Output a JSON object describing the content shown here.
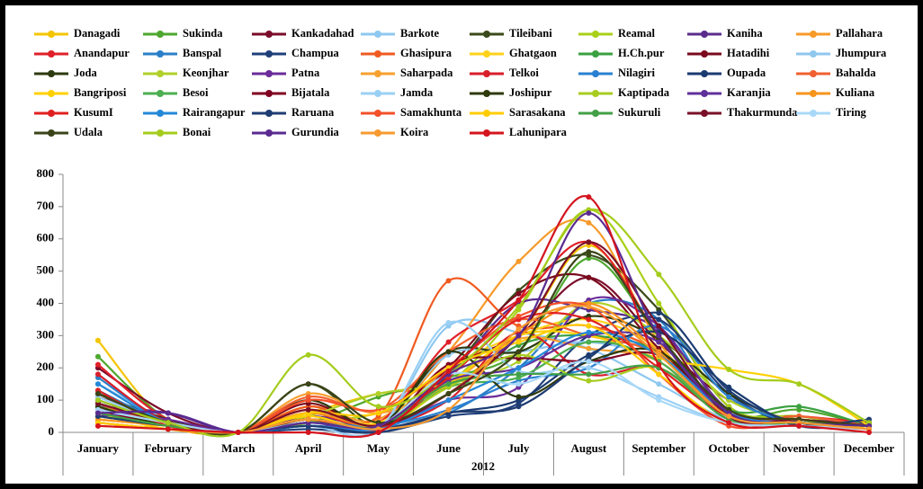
{
  "chart_data": {
    "type": "line",
    "x_label": "2012",
    "categories": [
      "January",
      "February",
      "March",
      "April",
      "May",
      "June",
      "July",
      "August",
      "September",
      "October",
      "November",
      "December"
    ],
    "ylim": [
      0,
      800
    ],
    "yticks": [
      0,
      100,
      200,
      300,
      400,
      500,
      600,
      700,
      800
    ],
    "grid": false,
    "series": [
      {
        "name": "Danagadi",
        "color": "#f5c400",
        "values": [
          285,
          30,
          0,
          60,
          120,
          150,
          300,
          580,
          300,
          50,
          30,
          20
        ]
      },
      {
        "name": "Sukinda",
        "color": "#4ea72e",
        "values": [
          235,
          40,
          0,
          30,
          110,
          170,
          250,
          540,
          300,
          60,
          70,
          20
        ]
      },
      {
        "name": "Kankadahad",
        "color": "#7b0c2a",
        "values": [
          200,
          60,
          0,
          40,
          20,
          200,
          300,
          480,
          280,
          100,
          40,
          30
        ]
      },
      {
        "name": "Barkote",
        "color": "#8ec8f0",
        "values": [
          150,
          40,
          0,
          20,
          10,
          330,
          310,
          260,
          150,
          40,
          20,
          10
        ]
      },
      {
        "name": "Tileibani",
        "color": "#3b4a1a",
        "values": [
          100,
          30,
          0,
          150,
          20,
          180,
          440,
          550,
          380,
          80,
          40,
          20
        ]
      },
      {
        "name": "Reamal",
        "color": "#a9d018",
        "values": [
          90,
          20,
          0,
          30,
          60,
          150,
          380,
          690,
          400,
          80,
          50,
          20
        ]
      },
      {
        "name": "Kaniha",
        "color": "#5b2c8c",
        "values": [
          80,
          60,
          0,
          50,
          30,
          180,
          400,
          380,
          320,
          70,
          40,
          30
        ]
      },
      {
        "name": "Pallahara",
        "color": "#f79a2a",
        "values": [
          60,
          20,
          0,
          80,
          40,
          250,
          530,
          650,
          280,
          60,
          30,
          20
        ]
      },
      {
        "name": "Anandapur",
        "color": "#e0202a",
        "values": [
          210,
          40,
          0,
          60,
          30,
          280,
          410,
          590,
          300,
          60,
          50,
          30
        ]
      },
      {
        "name": "Banspal",
        "color": "#2a7fc8",
        "values": [
          170,
          30,
          0,
          20,
          10,
          60,
          200,
          400,
          350,
          50,
          30,
          10
        ]
      },
      {
        "name": "Champua",
        "color": "#1f3f7a",
        "values": [
          70,
          20,
          0,
          10,
          0,
          50,
          90,
          300,
          350,
          120,
          20,
          30
        ]
      },
      {
        "name": "Ghasipura",
        "color": "#f05a20",
        "values": [
          60,
          30,
          0,
          80,
          50,
          470,
          330,
          330,
          250,
          60,
          40,
          20
        ]
      },
      {
        "name": "Ghatgaon",
        "color": "#ffd21a",
        "values": [
          50,
          20,
          0,
          70,
          30,
          200,
          300,
          350,
          260,
          60,
          30,
          10
        ]
      },
      {
        "name": "H.Ch.pur",
        "color": "#3aa040",
        "values": [
          120,
          30,
          0,
          40,
          20,
          120,
          270,
          300,
          250,
          70,
          80,
          20
        ]
      },
      {
        "name": "Hatadihi",
        "color": "#7a0a1e",
        "values": [
          110,
          40,
          0,
          90,
          20,
          200,
          430,
          480,
          260,
          60,
          40,
          20
        ]
      },
      {
        "name": "Jhumpura",
        "color": "#8fc7ee",
        "values": [
          50,
          20,
          0,
          30,
          20,
          240,
          250,
          280,
          220,
          50,
          30,
          20
        ]
      },
      {
        "name": "Joda",
        "color": "#2e3a10",
        "values": [
          120,
          40,
          0,
          100,
          20,
          250,
          250,
          360,
          290,
          120,
          30,
          20
        ]
      },
      {
        "name": "Keonjhar",
        "color": "#b0d02a",
        "values": [
          80,
          30,
          0,
          50,
          120,
          150,
          220,
          400,
          300,
          100,
          40,
          20
        ]
      },
      {
        "name": "Patna",
        "color": "#6a2c9a",
        "values": [
          70,
          40,
          0,
          40,
          10,
          100,
          140,
          410,
          330,
          60,
          30,
          20
        ]
      },
      {
        "name": "Saharpada",
        "color": "#f7a030",
        "values": [
          40,
          20,
          0,
          120,
          60,
          150,
          290,
          260,
          220,
          40,
          30,
          20
        ]
      },
      {
        "name": "Telkoi",
        "color": "#d81e2a",
        "values": [
          180,
          30,
          0,
          60,
          20,
          100,
          310,
          180,
          200,
          50,
          40,
          20
        ]
      },
      {
        "name": "Nilagiri",
        "color": "#2a80d0",
        "values": [
          130,
          30,
          0,
          30,
          20,
          70,
          160,
          200,
          330,
          110,
          30,
          20
        ]
      },
      {
        "name": "Oupada",
        "color": "#1a3a70",
        "values": [
          100,
          30,
          0,
          20,
          10,
          60,
          100,
          240,
          310,
          140,
          20,
          30
        ]
      },
      {
        "name": "Bahalda",
        "color": "#f06030",
        "values": [
          90,
          20,
          0,
          110,
          70,
          250,
          350,
          300,
          240,
          40,
          50,
          20
        ]
      },
      {
        "name": "Bangriposi",
        "color": "#ffd000",
        "values": [
          60,
          10,
          0,
          50,
          10,
          150,
          300,
          300,
          230,
          195,
          150,
          20
        ]
      },
      {
        "name": "Besoi",
        "color": "#4caf50",
        "values": [
          50,
          20,
          0,
          20,
          10,
          140,
          170,
          280,
          220,
          40,
          30,
          20
        ]
      },
      {
        "name": "Bijatala",
        "color": "#800020",
        "values": [
          70,
          20,
          0,
          40,
          10,
          210,
          230,
          220,
          240,
          60,
          30,
          20
        ]
      },
      {
        "name": "Jamda",
        "color": "#9bd0f5",
        "values": [
          110,
          30,
          0,
          20,
          10,
          340,
          190,
          200,
          110,
          30,
          20,
          10
        ]
      },
      {
        "name": "Joshipur",
        "color": "#2f3a0c",
        "values": [
          80,
          20,
          0,
          40,
          10,
          250,
          110,
          220,
          250,
          60,
          30,
          20
        ]
      },
      {
        "name": "Kaptipada",
        "color": "#a8cc20",
        "values": [
          30,
          10,
          0,
          30,
          20,
          140,
          240,
          160,
          200,
          40,
          30,
          20
        ]
      },
      {
        "name": "Karanjia",
        "color": "#60309a",
        "values": [
          50,
          60,
          0,
          30,
          10,
          160,
          200,
          300,
          280,
          50,
          40,
          20
        ]
      },
      {
        "name": "Kuliana",
        "color": "#f7941d",
        "values": [
          40,
          20,
          0,
          60,
          20,
          120,
          300,
          400,
          250,
          50,
          30,
          20
        ]
      },
      {
        "name": "KusumI",
        "color": "#e02020",
        "values": [
          130,
          20,
          0,
          40,
          10,
          170,
          350,
          350,
          200,
          50,
          30,
          20
        ]
      },
      {
        "name": "Rairangapur",
        "color": "#2488d8",
        "values": [
          150,
          30,
          0,
          20,
          10,
          100,
          200,
          310,
          240,
          60,
          30,
          20
        ]
      },
      {
        "name": "Raruana",
        "color": "#1e3c72",
        "values": [
          50,
          20,
          0,
          20,
          0,
          60,
          80,
          230,
          370,
          130,
          30,
          40
        ]
      },
      {
        "name": "Samakhunta",
        "color": "#f4502a",
        "values": [
          30,
          10,
          0,
          100,
          70,
          200,
          360,
          390,
          180,
          20,
          40,
          10
        ]
      },
      {
        "name": "Sarasakana",
        "color": "#ffcc00",
        "values": [
          30,
          10,
          0,
          60,
          60,
          200,
          280,
          330,
          180,
          30,
          40,
          10
        ]
      },
      {
        "name": "Sukuruli",
        "color": "#43a047",
        "values": [
          60,
          20,
          0,
          30,
          20,
          150,
          180,
          180,
          200,
          40,
          30,
          20
        ]
      },
      {
        "name": "Thakurmunda",
        "color": "#7a1028",
        "values": [
          90,
          30,
          0,
          70,
          20,
          120,
          300,
          590,
          330,
          50,
          40,
          20
        ]
      },
      {
        "name": "Tiring",
        "color": "#a8d8f8",
        "values": [
          70,
          30,
          0,
          30,
          20,
          180,
          150,
          220,
          100,
          30,
          20,
          10
        ]
      },
      {
        "name": "Udala",
        "color": "#3a4418",
        "values": [
          120,
          30,
          0,
          150,
          30,
          120,
          250,
          560,
          300,
          70,
          40,
          20
        ]
      },
      {
        "name": "Bonai",
        "color": "#a4cc1c",
        "values": [
          100,
          30,
          0,
          240,
          80,
          180,
          390,
          690,
          490,
          195,
          150,
          30
        ]
      },
      {
        "name": "Gurundia",
        "color": "#5a2a90",
        "values": [
          60,
          60,
          0,
          30,
          20,
          180,
          300,
          680,
          300,
          60,
          30,
          20
        ]
      },
      {
        "name": "Koira",
        "color": "#f79a30",
        "values": [
          20,
          10,
          0,
          40,
          10,
          70,
          320,
          390,
          240,
          50,
          30,
          10
        ]
      },
      {
        "name": "Lahunipara",
        "color": "#d4141e",
        "values": [
          20,
          10,
          0,
          0,
          0,
          190,
          410,
          730,
          210,
          30,
          20,
          0
        ]
      }
    ]
  }
}
